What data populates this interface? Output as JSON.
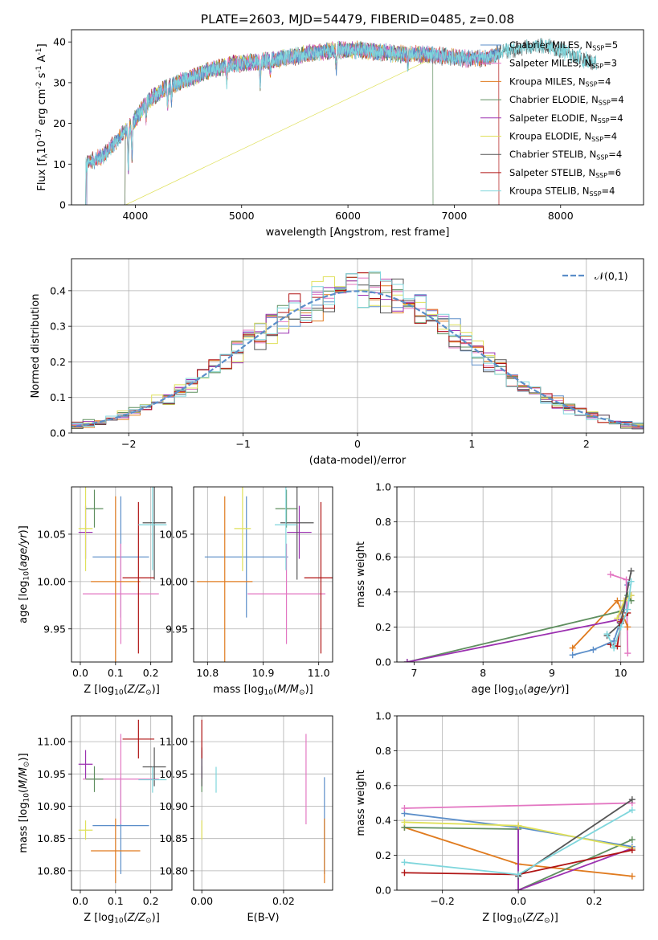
{
  "figure": {
    "title": "PLATE=2603, MJD=54479, FIBERID=0485, z=0.08"
  },
  "colors": {
    "Chabrier MILES": "#5b8ec9",
    "Salpeter MILES": "#e377c2",
    "Kroupa MILES": "#e07b1f",
    "Chabrier ELODIE": "#5f8f5f",
    "Salpeter ELODIE": "#9b30b0",
    "Kroupa ELODIE": "#dfe05a",
    "Chabrier STELIB": "#555555",
    "Salpeter STELIB": "#b01515",
    "Kroupa STELIB": "#7fd6dc",
    "model_normal": "#5b8ec9"
  },
  "chart_data": [
    {
      "id": "spectrum",
      "type": "line",
      "xlabel": "wavelength [Angstrom, rest frame]",
      "ylabel": "Flux [f$_\\lambda$10$^{-17}$ erg cm$^{-2}$ s$^{-1}$ A$^{-1}$]",
      "xlim": [
        3400,
        8780
      ],
      "ylim": [
        0,
        43
      ],
      "xticks": [
        4000,
        5000,
        6000,
        7000,
        8000
      ],
      "yticks": [
        0,
        10,
        20,
        30,
        40
      ],
      "grid": false,
      "legend_position": "top-right",
      "legend": [
        {
          "name": "Chabrier MILES",
          "nssp": "5"
        },
        {
          "name": "Salpeter MILES",
          "nssp": "3"
        },
        {
          "name": "Kroupa MILES",
          "nssp": "4"
        },
        {
          "name": "Chabrier ELODIE",
          "nssp": "4"
        },
        {
          "name": "Salpeter ELODIE",
          "nssp": "4"
        },
        {
          "name": "Kroupa ELODIE",
          "nssp": "4"
        },
        {
          "name": "Chabrier STELIB",
          "nssp": "4"
        },
        {
          "name": "Salpeter STELIB",
          "nssp": "6"
        },
        {
          "name": "Kroupa STELIB",
          "nssp": "4"
        }
      ],
      "continuum": {
        "x": [
          3530,
          3700,
          3900,
          3950,
          4100,
          4300,
          4500,
          4700,
          4900,
          5100,
          5300,
          5500,
          5700,
          5900,
          6100,
          6300,
          6500,
          6700,
          6900,
          7100,
          7300,
          7500,
          7700,
          7900,
          8100,
          8300
        ],
        "y": [
          10,
          12,
          18,
          19,
          25,
          29,
          31,
          33,
          34.5,
          35,
          35.5,
          36.5,
          37.5,
          38,
          38,
          37.5,
          37,
          37,
          36.5,
          36,
          36,
          38,
          39,
          39,
          37,
          35
        ]
      },
      "absorption_features": [
        {
          "x": 3934,
          "depth": 10
        },
        {
          "x": 3969,
          "depth": 8
        },
        {
          "x": 4102,
          "depth": 4
        },
        {
          "x": 4304,
          "depth": 5
        },
        {
          "x": 4341,
          "depth": 4
        },
        {
          "x": 4861,
          "depth": 4
        },
        {
          "x": 5175,
          "depth": 6
        },
        {
          "x": 5270,
          "depth": 3
        },
        {
          "x": 5890,
          "depth": 5
        },
        {
          "x": 6563,
          "depth": 3
        },
        {
          "x": 8542,
          "depth": 4
        }
      ],
      "drops": [
        {
          "series": "Salpeter STELIB",
          "x": 7420,
          "y_min": 0
        },
        {
          "series": "Chabrier ELODIE",
          "x": 6800,
          "y_min": 0
        },
        {
          "series": "Kroupa ELODIE",
          "x": 3910,
          "y_min": 0
        }
      ],
      "series_ranges": {
        "Chabrier MILES": [
          3540,
          7420
        ],
        "Salpeter MILES": [
          3540,
          7420
        ],
        "Kroupa MILES": [
          3540,
          7420
        ],
        "Chabrier ELODIE": [
          3900,
          6800
        ],
        "Salpeter ELODIE": [
          3900,
          6800
        ],
        "Kroupa ELODIE": [
          3900,
          6800
        ],
        "Chabrier STELIB": [
          3530,
          8340
        ],
        "Salpeter STELIB": [
          3530,
          7420
        ],
        "Kroupa STELIB": [
          3530,
          8340
        ]
      }
    },
    {
      "id": "residuals",
      "type": "line",
      "xlabel": "(data-model)/error",
      "ylabel": "Normed distribution",
      "xlim": [
        -2.5,
        2.5
      ],
      "ylim": [
        0,
        0.49
      ],
      "xticks": [
        -2,
        -1,
        0,
        1,
        2
      ],
      "yticks": [
        0.0,
        0.1,
        0.2,
        0.3,
        0.4
      ],
      "grid": true,
      "legend_position": "top-right",
      "legend": [
        {
          "name": "$\\mathcal{N}(0,1)$"
        }
      ],
      "bin_width": 0.1,
      "bin_start": -2.5,
      "model_normal": {
        "mean": 0,
        "sigma": 1
      }
    },
    {
      "id": "age_vs_Z",
      "type": "scatter",
      "xlabel": "Z [log$_{10}$($Z/Z_\\odot$)]",
      "ylabel": "age  [log$_{10}$($age/yr$)]",
      "xlim": [
        -0.025,
        0.26
      ],
      "ylim": [
        9.915,
        10.1
      ],
      "xticks": [
        0.0,
        0.1,
        0.2
      ],
      "yticks": [
        9.95,
        10.0,
        10.05
      ],
      "grid": true,
      "points": [
        {
          "series": "Chabrier MILES",
          "x": 0.115,
          "xerr": 0.08,
          "y": 10.026,
          "yerr": 0.064
        },
        {
          "series": "Salpeter MILES",
          "x": 0.115,
          "xerr": 0.108,
          "y": 9.987,
          "yerr": 0.053
        },
        {
          "series": "Kroupa MILES",
          "x": 0.1,
          "xerr": 0.07,
          "y": 10.0,
          "yerr": 0.09
        },
        {
          "series": "Chabrier ELODIE",
          "x": 0.04,
          "xerr": 0.025,
          "y": 10.077,
          "yerr": 0.02
        },
        {
          "series": "Salpeter ELODIE",
          "x": 0.015,
          "xerr": 0.02,
          "y": 10.052,
          "yerr": 0.028
        },
        {
          "series": "Kroupa ELODIE",
          "x": 0.015,
          "xerr": 0.02,
          "y": 10.056,
          "yerr": 0.045
        },
        {
          "series": "Chabrier STELIB",
          "x": 0.21,
          "xerr": 0.033,
          "y": 10.062,
          "yerr": 0.06
        },
        {
          "series": "Salpeter STELIB",
          "x": 0.165,
          "xerr": 0.045,
          "y": 10.004,
          "yerr": 0.08
        },
        {
          "series": "Kroupa STELIB",
          "x": 0.205,
          "xerr": 0.04,
          "y": 10.06,
          "yerr": 0.048
        }
      ]
    },
    {
      "id": "age_vs_mass",
      "type": "scatter",
      "xlabel": "mass [log$_{10}$($M/M_\\odot$)]",
      "ylabel": "",
      "xlim": [
        10.775,
        11.025
      ],
      "ylim": [
        9.915,
        10.1
      ],
      "xticks": [
        10.8,
        10.9,
        11.0
      ],
      "yticks": [
        9.95,
        10.0,
        10.05
      ],
      "grid": true,
      "points": [
        {
          "series": "Chabrier MILES",
          "x": 10.87,
          "xerr": 0.075,
          "y": 10.026,
          "yerr": 0.064
        },
        {
          "series": "Salpeter MILES",
          "x": 10.942,
          "xerr": 0.07,
          "y": 9.987,
          "yerr": 0.053
        },
        {
          "series": "Kroupa MILES",
          "x": 10.831,
          "xerr": 0.05,
          "y": 10.0,
          "yerr": 0.09
        },
        {
          "series": "Chabrier ELODIE",
          "x": 10.942,
          "xerr": 0.02,
          "y": 10.077,
          "yerr": 0.02
        },
        {
          "series": "Salpeter ELODIE",
          "x": 10.965,
          "xerr": 0.022,
          "y": 10.052,
          "yerr": 0.028
        },
        {
          "series": "Kroupa ELODIE",
          "x": 10.863,
          "xerr": 0.015,
          "y": 10.056,
          "yerr": 0.045
        },
        {
          "series": "Chabrier STELIB",
          "x": 10.961,
          "xerr": 0.03,
          "y": 10.062,
          "yerr": 0.06
        },
        {
          "series": "Salpeter STELIB",
          "x": 11.004,
          "xerr": 0.03,
          "y": 10.004,
          "yerr": 0.08
        },
        {
          "series": "Kroupa STELIB",
          "x": 10.941,
          "xerr": 0.02,
          "y": 10.06,
          "yerr": 0.048
        }
      ]
    },
    {
      "id": "weight_vs_age",
      "type": "line",
      "xlabel": "age  [log$_{10}$($age/yr$)]",
      "ylabel": "mass weight",
      "xlim": [
        6.75,
        10.33
      ],
      "ylim": [
        0,
        1.0
      ],
      "xticks": [
        7,
        8,
        9,
        10
      ],
      "yticks": [
        0.0,
        0.2,
        0.4,
        0.6,
        0.8,
        1.0
      ],
      "grid": true,
      "series": [
        {
          "name": "Chabrier MILES",
          "x": [
            9.3,
            9.6,
            9.9,
            10.05,
            10.1
          ],
          "y": [
            0.04,
            0.07,
            0.12,
            0.3,
            0.44
          ]
        },
        {
          "name": "Salpeter MILES",
          "x": [
            9.85,
            10.08,
            10.1
          ],
          "y": [
            0.5,
            0.47,
            0.05
          ]
        },
        {
          "name": "Kroupa MILES",
          "x": [
            9.3,
            9.95,
            10.1
          ],
          "y": [
            0.08,
            0.35,
            0.2
          ]
        },
        {
          "name": "Chabrier ELODIE",
          "x": [
            6.9,
            10.0,
            10.1,
            10.15
          ],
          "y": [
            0.0,
            0.29,
            0.38,
            0.35
          ]
        },
        {
          "name": "Salpeter ELODIE",
          "x": [
            6.9,
            9.95,
            10.05,
            10.15
          ],
          "y": [
            0.0,
            0.24,
            0.35,
            0.38
          ]
        },
        {
          "name": "Kroupa ELODIE",
          "x": [
            9.95,
            10.05,
            10.15
          ],
          "y": [
            0.25,
            0.35,
            0.38
          ]
        },
        {
          "name": "Chabrier STELIB",
          "x": [
            9.8,
            10.0,
            10.15
          ],
          "y": [
            0.15,
            0.22,
            0.52
          ]
        },
        {
          "name": "Salpeter STELIB",
          "x": [
            9.85,
            9.95,
            10.0,
            10.1
          ],
          "y": [
            0.1,
            0.09,
            0.23,
            0.28
          ]
        },
        {
          "name": "Kroupa STELIB",
          "x": [
            9.8,
            9.9,
            10.0,
            10.1,
            10.15
          ],
          "y": [
            0.16,
            0.08,
            0.2,
            0.3,
            0.46
          ]
        }
      ]
    },
    {
      "id": "mass_vs_Z",
      "type": "scatter",
      "xlabel": "Z [log$_{10}$($Z/Z_\\odot$)]",
      "ylabel": "mass [log$_{10}$($M/M_\\odot$)]",
      "xlim": [
        -0.025,
        0.26
      ],
      "ylim": [
        10.77,
        11.04
      ],
      "xticks": [
        0.0,
        0.1,
        0.2
      ],
      "yticks": [
        10.8,
        10.85,
        10.9,
        10.95,
        11.0
      ],
      "grid": true,
      "points": [
        {
          "series": "Chabrier MILES",
          "x": 0.115,
          "xerr": 0.08,
          "y": 10.87,
          "yerr": 0.075
        },
        {
          "series": "Salpeter MILES",
          "x": 0.115,
          "xerr": 0.108,
          "y": 10.942,
          "yerr": 0.07
        },
        {
          "series": "Kroupa MILES",
          "x": 0.1,
          "xerr": 0.07,
          "y": 10.831,
          "yerr": 0.05
        },
        {
          "series": "Chabrier ELODIE",
          "x": 0.04,
          "xerr": 0.025,
          "y": 10.942,
          "yerr": 0.02
        },
        {
          "series": "Salpeter ELODIE",
          "x": 0.015,
          "xerr": 0.02,
          "y": 10.965,
          "yerr": 0.022
        },
        {
          "series": "Kroupa ELODIE",
          "x": 0.015,
          "xerr": 0.02,
          "y": 10.863,
          "yerr": 0.015
        },
        {
          "series": "Chabrier STELIB",
          "x": 0.21,
          "xerr": 0.033,
          "y": 10.961,
          "yerr": 0.03
        },
        {
          "series": "Salpeter STELIB",
          "x": 0.165,
          "xerr": 0.045,
          "y": 11.004,
          "yerr": 0.03
        },
        {
          "series": "Kroupa STELIB",
          "x": 0.205,
          "xerr": 0.04,
          "y": 10.941,
          "yerr": 0.02
        }
      ]
    },
    {
      "id": "mass_vs_ebv",
      "type": "scatter",
      "xlabel": "E(B-V)",
      "ylabel": "",
      "xlim": [
        -0.002,
        0.032
      ],
      "ylim": [
        10.77,
        11.04
      ],
      "xticks": [
        0.0,
        0.02
      ],
      "yticks": [
        10.8,
        10.85,
        10.9,
        10.95,
        11.0
      ],
      "grid": true,
      "points": [
        {
          "series": "Chabrier MILES",
          "x": 0.03,
          "xerr": 0,
          "y": 10.87,
          "yerr": 0.075
        },
        {
          "series": "Salpeter MILES",
          "x": 0.0255,
          "xerr": 0,
          "y": 10.942,
          "yerr": 0.07
        },
        {
          "series": "Kroupa MILES",
          "x": 0.03,
          "xerr": 0,
          "y": 10.831,
          "yerr": 0.05
        },
        {
          "series": "Chabrier ELODIE",
          "x": 0.0,
          "xerr": 0,
          "y": 10.942,
          "yerr": 0.02
        },
        {
          "series": "Salpeter ELODIE",
          "x": 0.0,
          "xerr": 0,
          "y": 10.965,
          "yerr": 0.022
        },
        {
          "series": "Kroupa ELODIE",
          "x": 0.0,
          "xerr": 0,
          "y": 10.863,
          "yerr": 0.015
        },
        {
          "series": "Chabrier STELIB",
          "x": 0.0,
          "xerr": 0,
          "y": 10.961,
          "yerr": 0.03
        },
        {
          "series": "Salpeter STELIB",
          "x": 0.0,
          "xerr": 0,
          "y": 11.004,
          "yerr": 0.03
        },
        {
          "series": "Kroupa STELIB",
          "x": 0.0035,
          "xerr": 0,
          "y": 10.941,
          "yerr": 0.02
        }
      ]
    },
    {
      "id": "weight_vs_Z",
      "type": "line",
      "xlabel": "Z [log$_{10}$($Z/Z_\\odot$)]",
      "ylabel": "mass weight",
      "xlim": [
        -0.32,
        0.33
      ],
      "ylim": [
        0,
        1.0
      ],
      "xticks": [
        -0.2,
        0.0,
        0.2
      ],
      "yticks": [
        0.0,
        0.2,
        0.4,
        0.6,
        0.8,
        1.0
      ],
      "grid": true,
      "series": [
        {
          "name": "Chabrier MILES",
          "x": [
            -0.3,
            0.0,
            0.3
          ],
          "y": [
            0.44,
            0.36,
            0.25
          ]
        },
        {
          "name": "Salpeter MILES",
          "x": [
            -0.3,
            0.3
          ],
          "y": [
            0.47,
            0.5
          ]
        },
        {
          "name": "Kroupa MILES",
          "x": [
            -0.3,
            0.0,
            0.3
          ],
          "y": [
            0.36,
            0.15,
            0.08
          ]
        },
        {
          "name": "Chabrier ELODIE",
          "x": [
            -0.3,
            0.0,
            0.0,
            0.3
          ],
          "y": [
            0.36,
            0.35,
            0.0,
            0.29
          ]
        },
        {
          "name": "Salpeter ELODIE",
          "x": [
            0.0,
            0.0,
            0.3
          ],
          "y": [
            0.37,
            0.0,
            0.24
          ]
        },
        {
          "name": "Kroupa ELODIE",
          "x": [
            -0.3,
            0.0,
            0.3
          ],
          "y": [
            0.39,
            0.37,
            0.24
          ]
        },
        {
          "name": "Chabrier STELIB",
          "x": [
            0.0,
            0.3
          ],
          "y": [
            0.08,
            0.52
          ]
        },
        {
          "name": "Salpeter STELIB",
          "x": [
            -0.3,
            0.0,
            0.3
          ],
          "y": [
            0.1,
            0.09,
            0.23
          ]
        },
        {
          "name": "Kroupa STELIB",
          "x": [
            -0.3,
            0.0,
            0.3
          ],
          "y": [
            0.16,
            0.09,
            0.46
          ]
        }
      ]
    }
  ]
}
